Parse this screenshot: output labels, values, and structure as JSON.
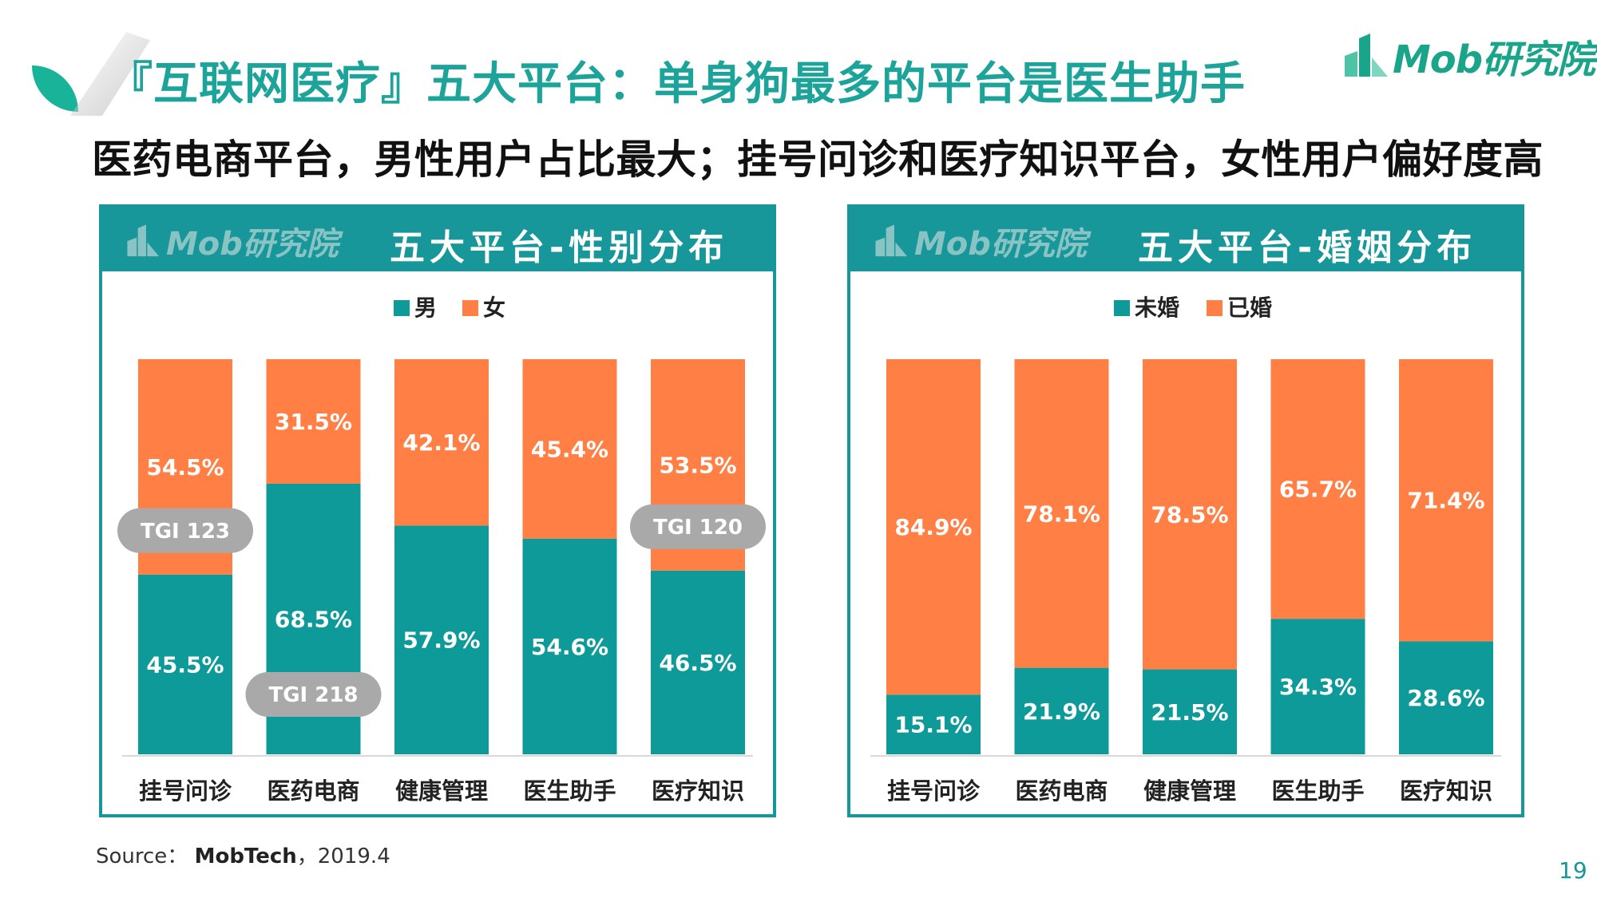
{
  "header": {
    "title": "『互联网医疗』五大平台：单身狗最多的平台是医生助手",
    "subtitle": "医药电商平台，男性用户占比最大；挂号问诊和医疗知识平台，女性用户偏好度高",
    "brand": "Mob研究院"
  },
  "colors": {
    "teal": "#0f9a9a",
    "orange": "#ff7f45",
    "header": "#17979a"
  },
  "footer": {
    "source_label": "Source：",
    "source_name": "MobTech",
    "source_date": "，2019.4",
    "page": "19"
  },
  "chart_data": [
    {
      "type": "bar",
      "stacked": true,
      "panel_title": "五大平台-性别分布",
      "panel_logo": "Mob研究院",
      "categories": [
        "挂号问诊",
        "医药电商",
        "健康管理",
        "医生助手",
        "医疗知识"
      ],
      "series": [
        {
          "name": "男",
          "color": "#0f9a9a",
          "values": [
            45.5,
            68.5,
            57.9,
            54.6,
            46.5
          ]
        },
        {
          "name": "女",
          "color": "#ff7f45",
          "values": [
            54.5,
            31.5,
            42.1,
            45.4,
            53.5
          ]
        }
      ],
      "value_labels": {
        "男": [
          "45.5%",
          "68.5%",
          "57.9%",
          "54.6%",
          "46.5%"
        ],
        "女": [
          "54.5%",
          "31.5%",
          "42.1%",
          "45.4%",
          "53.5%"
        ]
      },
      "annotations": [
        {
          "category": "挂号问诊",
          "text": "TGI 123"
        },
        {
          "category": "医药电商",
          "text": "TGI 218"
        },
        {
          "category": "医疗知识",
          "text": "TGI 120"
        }
      ],
      "ylim": [
        0,
        100
      ],
      "legend": "top-center",
      "grid": false
    },
    {
      "type": "bar",
      "stacked": true,
      "panel_title": "五大平台-婚姻分布",
      "panel_logo": "Mob研究院",
      "categories": [
        "挂号问诊",
        "医药电商",
        "健康管理",
        "医生助手",
        "医疗知识"
      ],
      "series": [
        {
          "name": "未婚",
          "color": "#0f9a9a",
          "values": [
            15.1,
            21.9,
            21.5,
            34.3,
            28.6
          ]
        },
        {
          "name": "已婚",
          "color": "#ff7f45",
          "values": [
            84.9,
            78.1,
            78.5,
            65.7,
            71.4
          ]
        }
      ],
      "value_labels": {
        "未婚": [
          "15.1%",
          "21.9%",
          "21.5%",
          "34.3%",
          "28.6%"
        ],
        "已婚": [
          "84.9%",
          "78.1%",
          "78.5%",
          "65.7%",
          "71.4%"
        ]
      },
      "ylim": [
        0,
        100
      ],
      "legend": "top-center",
      "grid": false
    }
  ]
}
